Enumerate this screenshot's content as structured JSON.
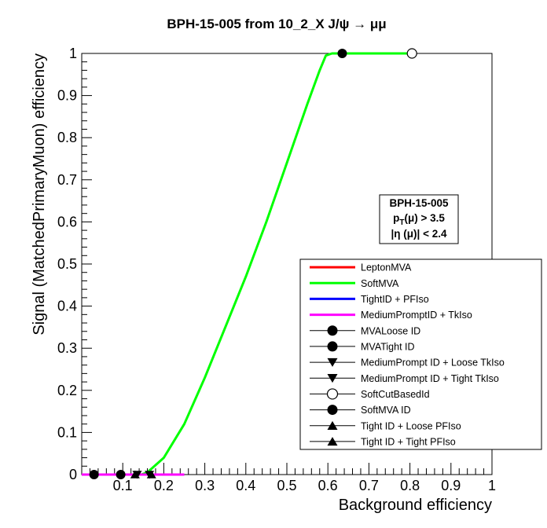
{
  "chart_data": {
    "type": "line",
    "title": "BPH-15-005 from 10_2_X J/ψ → μμ",
    "xlabel": "Background efficiency",
    "ylabel": "Signal (MatchedPrimaryMuon) efficiency",
    "xlim": [
      0,
      1
    ],
    "ylim": [
      0,
      1
    ],
    "x_ticks": [
      "0.1",
      "0.2",
      "0.3",
      "0.4",
      "0.5",
      "0.6",
      "0.7",
      "0.8",
      "0.9",
      "1"
    ],
    "y_ticks": [
      "0",
      "0.1",
      "0.2",
      "0.3",
      "0.4",
      "0.5",
      "0.6",
      "0.7",
      "0.8",
      "0.9",
      "1"
    ],
    "grid": false,
    "info_box": {
      "line1": "BPH-15-005",
      "line2": "p",
      "line2_sub": "T",
      "line2_rest": "(μ) > 3.5",
      "line3": "|η (μ)| < 2.4"
    },
    "legend_position": "bottom-right",
    "series": [
      {
        "name": "LeptonMVA",
        "kind": "line",
        "color": "#ff0000",
        "points": []
      },
      {
        "name": "SoftMVA",
        "kind": "line",
        "color": "#00ff00",
        "points": [
          [
            0.145,
            0.0
          ],
          [
            0.16,
            0.005
          ],
          [
            0.2,
            0.04
          ],
          [
            0.25,
            0.12
          ],
          [
            0.3,
            0.23
          ],
          [
            0.35,
            0.35
          ],
          [
            0.4,
            0.47
          ],
          [
            0.45,
            0.6
          ],
          [
            0.5,
            0.74
          ],
          [
            0.55,
            0.88
          ],
          [
            0.58,
            0.96
          ],
          [
            0.595,
            0.995
          ],
          [
            0.61,
            1.0
          ],
          [
            0.65,
            1.0
          ],
          [
            0.7,
            1.0
          ],
          [
            0.8,
            1.0
          ]
        ]
      },
      {
        "name": "TightID + PFIso",
        "kind": "line",
        "color": "#0000ff",
        "points": []
      },
      {
        "name": "MediumPromptID + TkIso",
        "kind": "line",
        "color": "#ff00ff",
        "points": [
          [
            0.0,
            0.0
          ],
          [
            0.25,
            0.0
          ]
        ]
      },
      {
        "name": "MVALoose ID",
        "kind": "marker",
        "marker": "filled-circle",
        "color": "#000000",
        "points": [
          [
            0.03,
            0.0
          ]
        ]
      },
      {
        "name": "MVATight ID",
        "kind": "marker",
        "marker": "filled-circle",
        "color": "#000000",
        "points": [
          [
            0.095,
            0.0
          ]
        ]
      },
      {
        "name": "MediumPrompt ID + Loose TkIso",
        "kind": "marker",
        "marker": "triangle-down",
        "color": "#000000",
        "points": [
          [
            0.165,
            0.0
          ]
        ]
      },
      {
        "name": "MediumPrompt ID + Tight TkIso",
        "kind": "marker",
        "marker": "triangle-down",
        "color": "#000000",
        "points": [
          [
            0.135,
            0.0
          ]
        ]
      },
      {
        "name": "SoftCutBasedId",
        "kind": "marker",
        "marker": "open-circle",
        "color": "#000000",
        "points": [
          [
            0.805,
            1.0
          ]
        ]
      },
      {
        "name": "SoftMVA ID",
        "kind": "marker",
        "marker": "filled-circle",
        "color": "#000000",
        "points": [
          [
            0.635,
            1.0
          ]
        ]
      },
      {
        "name": "Tight ID + Loose PFIso",
        "kind": "marker",
        "marker": "triangle-up",
        "color": "#000000",
        "points": [
          [
            0.17,
            0.0
          ]
        ]
      },
      {
        "name": "Tight ID + Tight PFIso",
        "kind": "marker",
        "marker": "triangle-up",
        "color": "#000000",
        "points": [
          [
            0.13,
            0.0
          ]
        ]
      }
    ]
  }
}
